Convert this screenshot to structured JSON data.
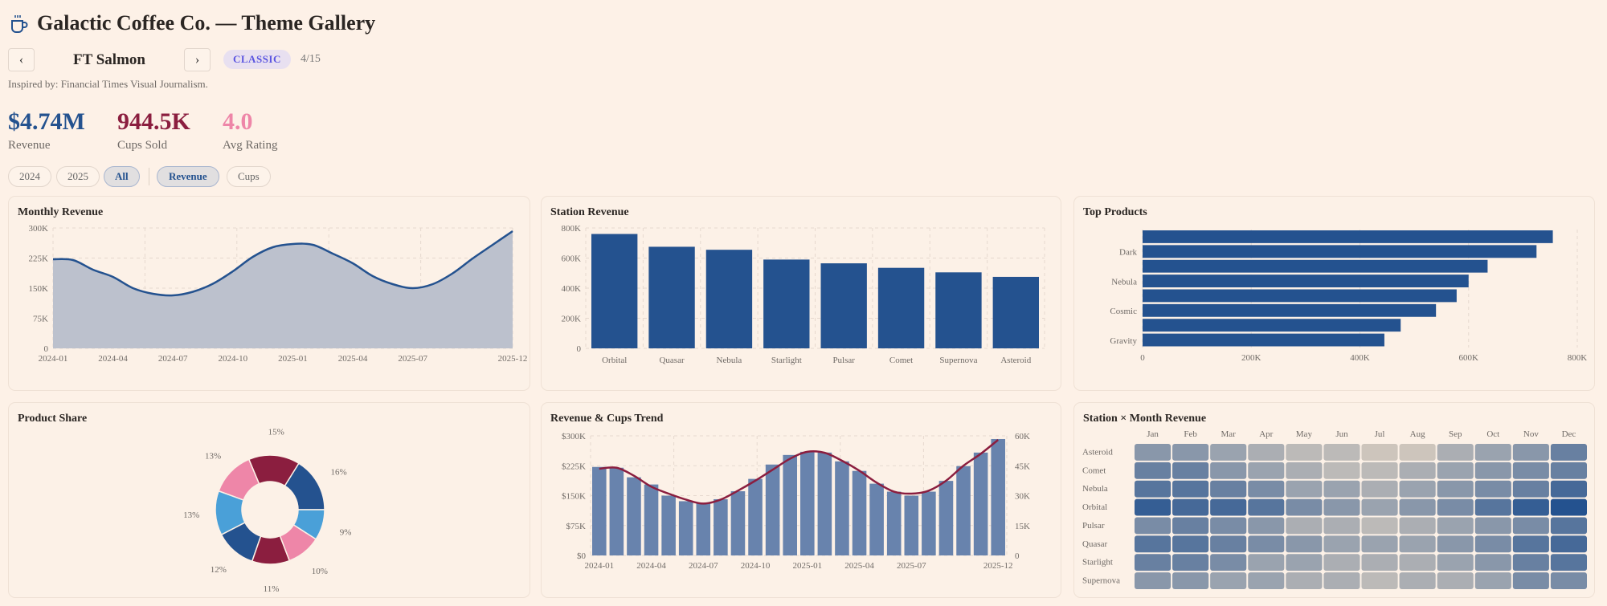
{
  "header": {
    "title": "Galactic Coffee Co. — Theme Gallery",
    "icon": "coffee-cup-icon"
  },
  "theme_nav": {
    "prev_icon": "chevron-left-icon",
    "next_icon": "chevron-right-icon",
    "name": "FT Salmon",
    "badge": "CLASSIC",
    "counter": "4/15",
    "inspired": "Inspired by: Financial Times Visual Journalism."
  },
  "kpis": [
    {
      "value": "$4.74M",
      "label": "Revenue",
      "color": "#24528f"
    },
    {
      "value": "944.5K",
      "label": "Cups Sold",
      "color": "#8b1e3f"
    },
    {
      "value": "4.0",
      "label": "Avg Rating",
      "color": "#ee86a8"
    }
  ],
  "filters": {
    "years": [
      "2024",
      "2025",
      "All"
    ],
    "active_year": "All",
    "metrics": [
      "Revenue",
      "Cups"
    ],
    "active_metric": "Revenue"
  },
  "colors": {
    "blue": "#24528f",
    "maroon": "#8b1e3f",
    "pink": "#ee86a8",
    "lightblue": "#4aa0d8",
    "area": "#bcc1cd"
  },
  "chart_data": [
    {
      "id": "monthly",
      "type": "area",
      "title": "Monthly Revenue",
      "x": [
        "2024-01",
        "2024-02",
        "2024-03",
        "2024-04",
        "2024-05",
        "2024-06",
        "2024-07",
        "2024-08",
        "2024-09",
        "2024-10",
        "2024-11",
        "2024-12",
        "2025-01",
        "2025-02",
        "2025-03",
        "2025-04",
        "2025-05",
        "2025-06",
        "2025-07",
        "2025-08",
        "2025-09",
        "2025-10",
        "2025-11",
        "2025-12"
      ],
      "values": [
        222,
        220,
        196,
        178,
        150,
        136,
        132,
        141,
        161,
        192,
        228,
        252,
        260,
        258,
        236,
        212,
        180,
        160,
        150,
        160,
        187,
        224,
        258,
        292
      ],
      "x_tick_labels": [
        "2024-01",
        "2024-04",
        "2024-07",
        "2024-10",
        "2025-01",
        "2025-04",
        "2025-07",
        "2025-12"
      ],
      "y_ticks": [
        "0",
        "75K",
        "150K",
        "225K",
        "300K"
      ],
      "ylim": [
        0,
        300
      ],
      "grid": true
    },
    {
      "id": "station",
      "type": "bar",
      "title": "Station Revenue",
      "categories": [
        "Orbital",
        "Quasar",
        "Nebula",
        "Starlight",
        "Pulsar",
        "Comet",
        "Supernova",
        "Asteroid"
      ],
      "values": [
        760,
        675,
        655,
        590,
        565,
        535,
        505,
        475
      ],
      "y_ticks": [
        "0",
        "200K",
        "400K",
        "600K",
        "800K"
      ],
      "ylim": [
        0,
        800
      ],
      "grid": true
    },
    {
      "id": "products",
      "type": "bar",
      "orientation": "horizontal",
      "title": "Top Products",
      "categories": [
        "",
        "Dark",
        "",
        "Nebula",
        "",
        "Cosmic",
        "",
        "Gravity"
      ],
      "values": [
        755,
        725,
        635,
        600,
        578,
        540,
        475,
        445
      ],
      "x_ticks": [
        "0",
        "200K",
        "400K",
        "600K",
        "800K"
      ],
      "xlim": [
        0,
        800
      ],
      "grid": true
    },
    {
      "id": "share",
      "type": "pie",
      "title": "Product Share",
      "values": [
        16,
        15,
        13,
        13,
        12,
        11,
        10,
        9
      ],
      "labels": [
        "16%",
        "15%",
        "13%",
        "13%",
        "12%",
        "11%",
        "10%",
        "9%"
      ],
      "colors": [
        "#24528f",
        "#8b1e3f",
        "#ee86a8",
        "#4aa0d8",
        "#24528f",
        "#8b1e3f",
        "#ee86a8",
        "#4aa0d8"
      ]
    },
    {
      "id": "trend",
      "type": "bar+line",
      "title": "Revenue & Cups Trend",
      "x": [
        "2024-01",
        "2024-02",
        "2024-03",
        "2024-04",
        "2024-05",
        "2024-06",
        "2024-07",
        "2024-08",
        "2024-09",
        "2024-10",
        "2024-11",
        "2024-12",
        "2025-01",
        "2025-02",
        "2025-03",
        "2025-04",
        "2025-05",
        "2025-06",
        "2025-07",
        "2025-08",
        "2025-09",
        "2025-10",
        "2025-11",
        "2025-12"
      ],
      "series": [
        {
          "name": "Revenue",
          "type": "bar",
          "axis": "left",
          "values": [
            222,
            220,
            196,
            178,
            150,
            136,
            132,
            141,
            161,
            192,
            228,
            252,
            260,
            258,
            236,
            212,
            180,
            160,
            150,
            160,
            187,
            224,
            258,
            292
          ]
        },
        {
          "name": "Cups",
          "type": "line",
          "axis": "right",
          "values": [
            43.5,
            44,
            40,
            34.5,
            31,
            28,
            26,
            28,
            32.5,
            37.5,
            43,
            48.5,
            52,
            51.5,
            47.5,
            42.5,
            36.5,
            32,
            31,
            32.5,
            37.5,
            45,
            51,
            58
          ]
        }
      ],
      "x_tick_labels": [
        "2024-01",
        "2024-04",
        "2024-07",
        "2024-10",
        "2025-01",
        "2025-04",
        "2025-07",
        "2025-12"
      ],
      "y_left_ticks": [
        "$0",
        "$75K",
        "$150K",
        "$225K",
        "$300K"
      ],
      "y_left_lim": [
        0,
        300
      ],
      "y_right_ticks": [
        "0",
        "15K",
        "30K",
        "45K",
        "60K"
      ],
      "y_right_lim": [
        0,
        60
      ],
      "grid": true
    },
    {
      "id": "heatmap",
      "type": "heatmap",
      "title": "Station × Month Revenue",
      "columns": [
        "Jan",
        "Feb",
        "Mar",
        "Apr",
        "May",
        "Jun",
        "Jul",
        "Aug",
        "Sep",
        "Oct",
        "Nov",
        "Dec"
      ],
      "rows": [
        "Asteroid",
        "Comet",
        "Nebula",
        "Orbital",
        "Pulsar",
        "Quasar",
        "Starlight",
        "Supernova"
      ],
      "values": [
        [
          56,
          56,
          50,
          44,
          38,
          38,
          32,
          32,
          44,
          50,
          56,
          68
        ],
        [
          68,
          68,
          56,
          50,
          44,
          38,
          38,
          44,
          50,
          56,
          62,
          68
        ],
        [
          74,
          74,
          68,
          62,
          50,
          50,
          44,
          50,
          56,
          62,
          68,
          80
        ],
        [
          86,
          80,
          80,
          74,
          62,
          56,
          50,
          56,
          62,
          74,
          86,
          92
        ],
        [
          62,
          68,
          62,
          56,
          44,
          44,
          38,
          44,
          50,
          56,
          62,
          74
        ],
        [
          74,
          74,
          68,
          62,
          56,
          50,
          50,
          50,
          56,
          62,
          74,
          80
        ],
        [
          68,
          68,
          62,
          50,
          50,
          44,
          44,
          44,
          50,
          56,
          68,
          74
        ],
        [
          56,
          56,
          50,
          50,
          44,
          44,
          38,
          44,
          44,
          50,
          62,
          62
        ]
      ],
      "color_range": [
        "#cdc5bc",
        "#24528f"
      ]
    }
  ]
}
